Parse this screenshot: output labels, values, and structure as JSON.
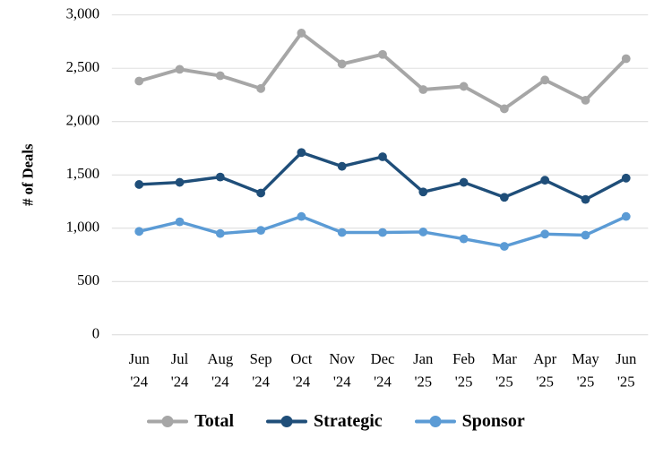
{
  "chart_data": {
    "type": "line",
    "title": "",
    "xlabel": "",
    "ylabel": "# of Deals",
    "ylim": [
      0,
      3000
    ],
    "ytick_interval": 500,
    "grid": "horizontal",
    "grid_color": "#d9d9d9",
    "text_color": "#000000",
    "legend_position": "bottom",
    "categories": [
      [
        "Jun",
        "'24"
      ],
      [
        "Jul",
        "'24"
      ],
      [
        "Aug",
        "'24"
      ],
      [
        "Sep",
        "'24"
      ],
      [
        "Oct",
        "'24"
      ],
      [
        "Nov",
        "'24"
      ],
      [
        "Dec",
        "'24"
      ],
      [
        "Jan",
        "'25"
      ],
      [
        "Feb",
        "'25"
      ],
      [
        "Mar",
        "'25"
      ],
      [
        "Apr",
        "'25"
      ],
      [
        "May",
        "'25"
      ],
      [
        "Jun",
        "'25"
      ]
    ],
    "series": [
      {
        "name": "Total",
        "color": "#a6a6a6",
        "values": [
          2380,
          2490,
          2430,
          2310,
          2830,
          2540,
          2630,
          2300,
          2330,
          2120,
          2390,
          2200,
          2590
        ]
      },
      {
        "name": "Strategic",
        "color": "#1f4e79",
        "values": [
          1410,
          1430,
          1480,
          1330,
          1710,
          1580,
          1670,
          1340,
          1430,
          1290,
          1450,
          1270,
          1470
        ]
      },
      {
        "name": "Sponsor",
        "color": "#5b9bd5",
        "values": [
          970,
          1060,
          950,
          980,
          1110,
          960,
          960,
          965,
          900,
          830,
          945,
          935,
          1110
        ]
      }
    ]
  }
}
